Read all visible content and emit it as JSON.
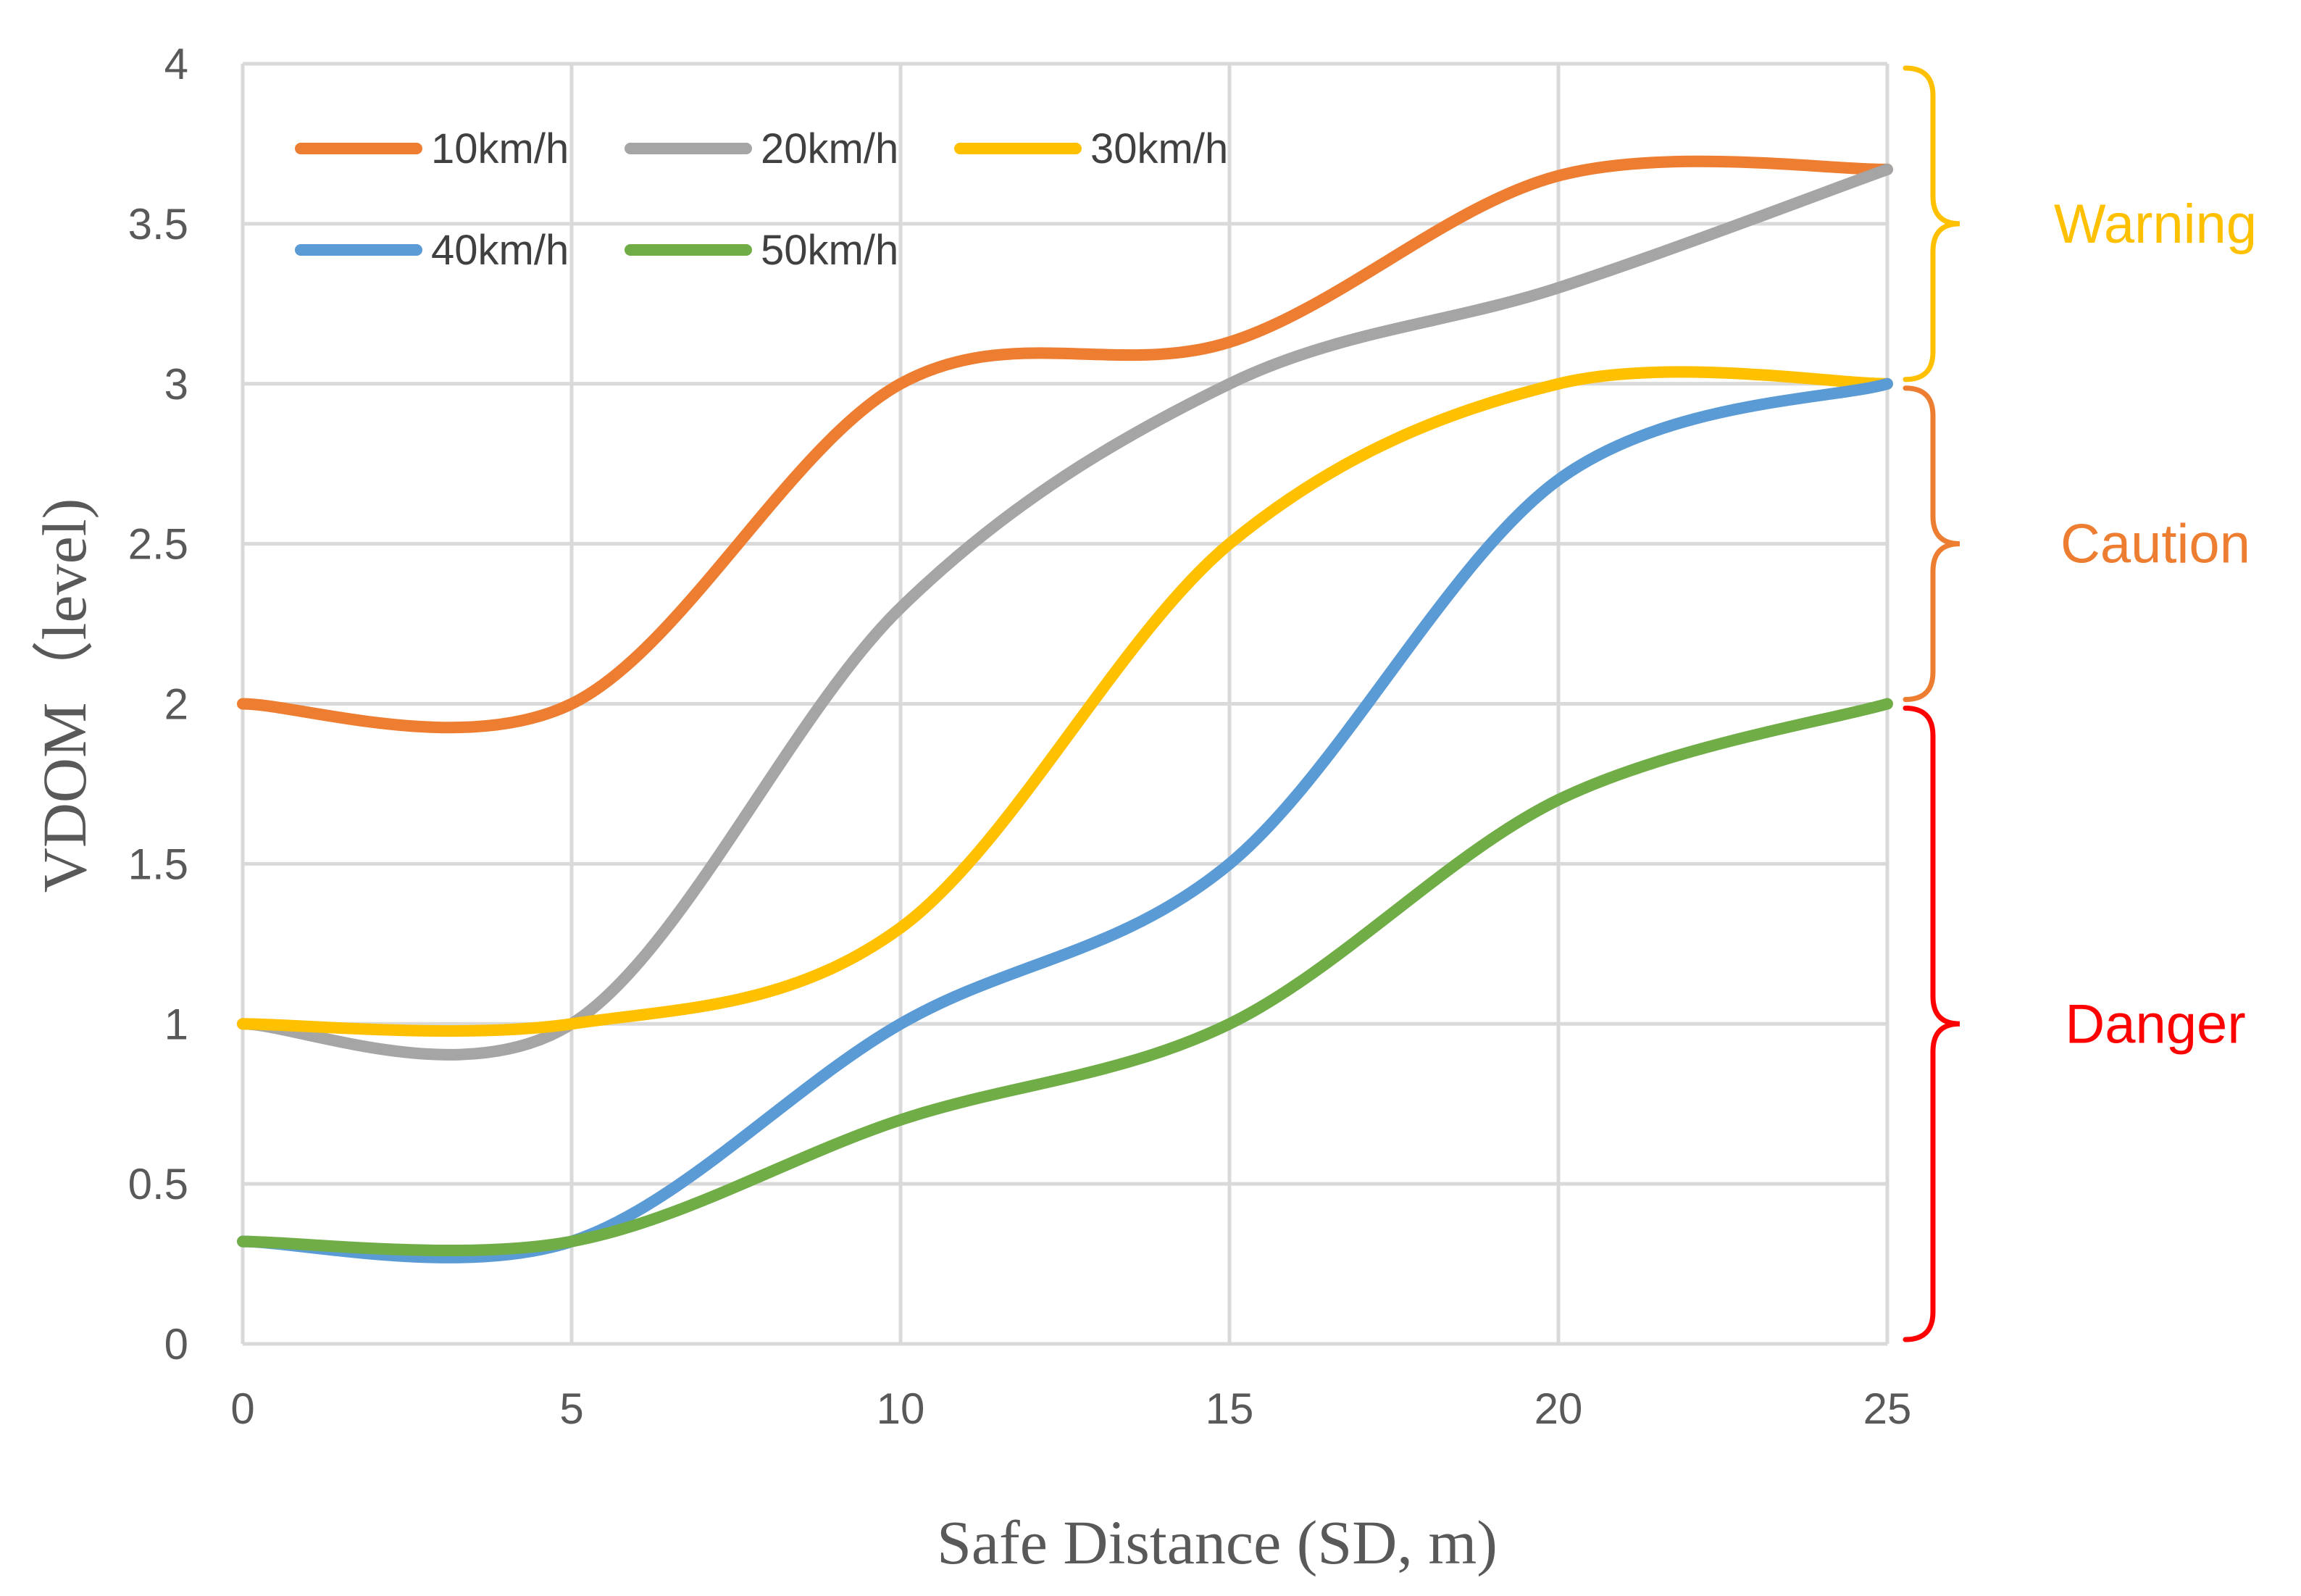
{
  "chart_data": {
    "type": "line",
    "title": "",
    "xlabel": "Safe Distance (SD, m)",
    "ylabel": "VDOM（level)",
    "xlim": [
      0,
      25
    ],
    "ylim": [
      0,
      4
    ],
    "x_ticks": [
      "0",
      "5",
      "10",
      "15",
      "20",
      "25"
    ],
    "y_ticks": [
      "0",
      "0.5",
      "1",
      "1.5",
      "2",
      "2.5",
      "3",
      "3.5",
      "4"
    ],
    "grid": true,
    "legend_position": "top-left",
    "x": [
      0,
      5,
      10,
      15,
      20,
      25
    ],
    "series": [
      {
        "name": "10km/h",
        "color": "#ED7D31",
        "values": [
          2.0,
          2.0,
          3.0,
          3.13,
          3.65,
          3.67
        ]
      },
      {
        "name": "20km/h",
        "color": "#A5A5A5",
        "values": [
          1.0,
          1.0,
          2.3,
          3.0,
          3.3,
          3.67
        ]
      },
      {
        "name": "30km/h",
        "color": "#FFC000",
        "values": [
          1.0,
          1.0,
          1.3,
          2.5,
          3.0,
          3.0
        ]
      },
      {
        "name": "40km/h",
        "color": "#5B9BD5",
        "values": [
          0.32,
          0.32,
          1.0,
          1.5,
          2.7,
          3.0
        ]
      },
      {
        "name": "50km/h",
        "color": "#70AD47",
        "values": [
          0.32,
          0.32,
          0.7,
          1.0,
          1.7,
          2.0
        ]
      }
    ],
    "annotations": [
      {
        "label": "Warning",
        "range": [
          3.0,
          4.0
        ],
        "color": "#FFC000"
      },
      {
        "label": "Caution",
        "range": [
          2.0,
          3.0
        ],
        "color": "#ED7D31"
      },
      {
        "label": "Danger",
        "range": [
          0.0,
          2.0
        ],
        "color": "#FF0000"
      }
    ]
  }
}
